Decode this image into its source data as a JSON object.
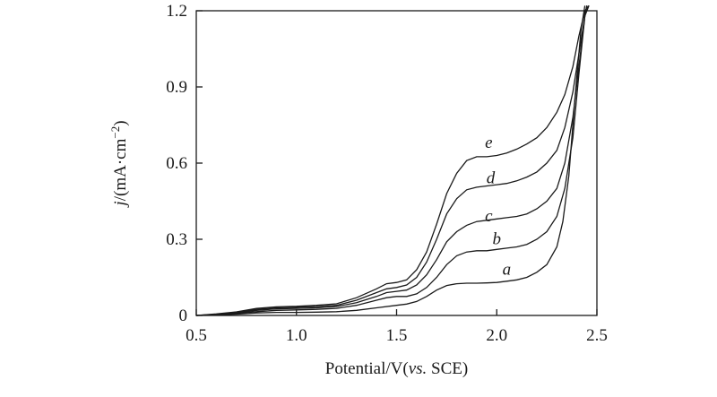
{
  "chart_data": {
    "type": "line",
    "title": "",
    "xlabel_parts": {
      "pre": "Potential/V(",
      "italic": "vs.",
      "post": " SCE)"
    },
    "ylabel_parts": {
      "italic": "j",
      "pre": "/(mA·cm",
      "sup": "−2",
      "post": ")"
    },
    "xlim": [
      0.5,
      2.5
    ],
    "ylim": [
      0,
      1.2
    ],
    "xticks": [
      "0.5",
      "1.0",
      "1.5",
      "2.0",
      "2.5"
    ],
    "yticks": [
      "0",
      "0.3",
      "0.6",
      "0.9",
      "1.2"
    ],
    "grid": false,
    "legend": "inline",
    "line_color": "#1a1a1a",
    "series": [
      {
        "name": "a",
        "label_at": [
          2.05,
          0.16
        ],
        "x": [
          0.5,
          0.6,
          0.7,
          0.8,
          0.9,
          1.0,
          1.1,
          1.2,
          1.3,
          1.4,
          1.5,
          1.55,
          1.6,
          1.65,
          1.7,
          1.75,
          1.8,
          1.85,
          1.9,
          1.95,
          2.0,
          2.05,
          2.1,
          2.15,
          2.2,
          2.25,
          2.3,
          2.33,
          2.36,
          2.39,
          2.42,
          2.44
        ],
        "y": [
          0.0,
          0.002,
          0.005,
          0.01,
          0.012,
          0.012,
          0.013,
          0.015,
          0.02,
          0.03,
          0.04,
          0.045,
          0.055,
          0.075,
          0.1,
          0.118,
          0.125,
          0.127,
          0.127,
          0.128,
          0.13,
          0.135,
          0.14,
          0.15,
          0.17,
          0.2,
          0.27,
          0.37,
          0.55,
          0.85,
          1.12,
          1.22
        ]
      },
      {
        "name": "b",
        "label_at": [
          2.0,
          0.28
        ],
        "x": [
          0.5,
          0.6,
          0.7,
          0.8,
          0.9,
          1.0,
          1.1,
          1.2,
          1.3,
          1.4,
          1.45,
          1.5,
          1.55,
          1.6,
          1.65,
          1.7,
          1.75,
          1.8,
          1.85,
          1.9,
          1.95,
          2.0,
          2.05,
          2.1,
          2.15,
          2.2,
          2.25,
          2.3,
          2.34,
          2.38,
          2.41,
          2.44,
          2.45
        ],
        "y": [
          0.0,
          0.003,
          0.008,
          0.015,
          0.02,
          0.022,
          0.024,
          0.028,
          0.04,
          0.06,
          0.07,
          0.075,
          0.075,
          0.085,
          0.11,
          0.15,
          0.2,
          0.235,
          0.25,
          0.255,
          0.255,
          0.26,
          0.265,
          0.27,
          0.28,
          0.3,
          0.33,
          0.39,
          0.5,
          0.7,
          0.95,
          1.18,
          1.22
        ]
      },
      {
        "name": "c",
        "label_at": [
          1.96,
          0.37
        ],
        "x": [
          0.5,
          0.6,
          0.7,
          0.8,
          0.9,
          1.0,
          1.1,
          1.2,
          1.3,
          1.4,
          1.45,
          1.5,
          1.55,
          1.6,
          1.65,
          1.7,
          1.75,
          1.8,
          1.85,
          1.9,
          1.95,
          2.0,
          2.05,
          2.1,
          2.15,
          2.2,
          2.25,
          2.3,
          2.34,
          2.38,
          2.41,
          2.44,
          2.45
        ],
        "y": [
          0.0,
          0.004,
          0.01,
          0.02,
          0.026,
          0.028,
          0.03,
          0.035,
          0.05,
          0.075,
          0.09,
          0.095,
          0.1,
          0.12,
          0.16,
          0.22,
          0.29,
          0.33,
          0.355,
          0.37,
          0.375,
          0.38,
          0.385,
          0.39,
          0.4,
          0.42,
          0.45,
          0.5,
          0.6,
          0.78,
          0.98,
          1.18,
          1.22
        ]
      },
      {
        "name": "d",
        "label_at": [
          1.97,
          0.52
        ],
        "x": [
          0.5,
          0.6,
          0.7,
          0.8,
          0.9,
          1.0,
          1.1,
          1.2,
          1.3,
          1.4,
          1.45,
          1.5,
          1.55,
          1.6,
          1.65,
          1.7,
          1.75,
          1.8,
          1.85,
          1.9,
          1.95,
          2.0,
          2.05,
          2.1,
          2.15,
          2.2,
          2.25,
          2.3,
          2.34,
          2.38,
          2.41,
          2.44,
          2.46
        ],
        "y": [
          0.0,
          0.005,
          0.012,
          0.024,
          0.03,
          0.032,
          0.035,
          0.04,
          0.06,
          0.09,
          0.105,
          0.11,
          0.12,
          0.15,
          0.21,
          0.3,
          0.4,
          0.46,
          0.495,
          0.505,
          0.51,
          0.515,
          0.52,
          0.53,
          0.545,
          0.565,
          0.6,
          0.65,
          0.74,
          0.88,
          1.03,
          1.18,
          1.22
        ]
      },
      {
        "name": "e",
        "label_at": [
          1.96,
          0.66
        ],
        "x": [
          0.5,
          0.6,
          0.7,
          0.8,
          0.9,
          1.0,
          1.1,
          1.2,
          1.3,
          1.4,
          1.45,
          1.5,
          1.55,
          1.6,
          1.65,
          1.7,
          1.75,
          1.8,
          1.85,
          1.9,
          1.95,
          2.0,
          2.05,
          2.1,
          2.15,
          2.2,
          2.25,
          2.3,
          2.34,
          2.38,
          2.41,
          2.44,
          2.46
        ],
        "y": [
          0.0,
          0.006,
          0.014,
          0.028,
          0.034,
          0.036,
          0.04,
          0.046,
          0.07,
          0.105,
          0.125,
          0.13,
          0.14,
          0.18,
          0.25,
          0.36,
          0.48,
          0.56,
          0.61,
          0.625,
          0.625,
          0.63,
          0.64,
          0.655,
          0.675,
          0.7,
          0.74,
          0.8,
          0.87,
          0.98,
          1.1,
          1.2,
          1.22
        ]
      }
    ]
  }
}
